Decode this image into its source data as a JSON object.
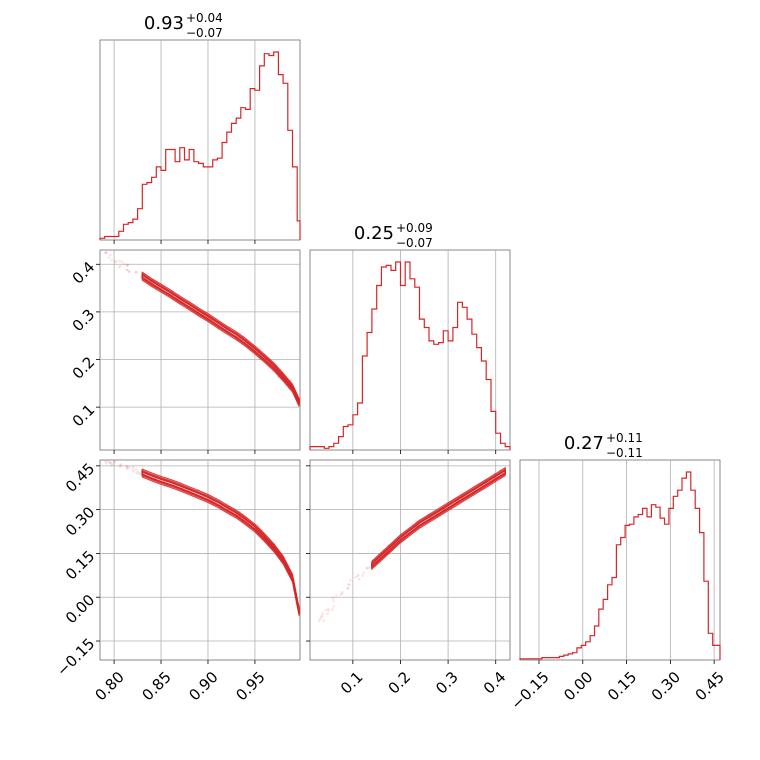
{
  "chart_data": {
    "type": "corner",
    "color": "#d62728",
    "parameters": [
      {
        "id": "p0",
        "range": [
          0.785,
          0.998
        ],
        "ticks": [
          0.8,
          0.85,
          0.9,
          0.95
        ],
        "tick_labels": [
          "0.80",
          "0.85",
          "0.90",
          "0.95"
        ],
        "title": {
          "value": "0.93",
          "plus": "+0.04",
          "minus": "−0.07"
        }
      },
      {
        "id": "p1",
        "range": [
          0.01,
          0.43
        ],
        "ticks": [
          0.1,
          0.2,
          0.3,
          0.4
        ],
        "tick_labels": [
          "0.1",
          "0.2",
          "0.3",
          "0.4"
        ],
        "title": {
          "value": "0.25",
          "plus": "+0.09",
          "minus": "−0.07"
        }
      },
      {
        "id": "p2",
        "range": [
          -0.215,
          0.47
        ],
        "ticks": [
          -0.15,
          0.0,
          0.15,
          0.3,
          0.45
        ],
        "tick_labels": [
          "−0.15",
          "0.00",
          "0.15",
          "0.30",
          "0.45"
        ],
        "title": {
          "value": "0.27",
          "plus": "+0.11",
          "minus": "−0.11"
        }
      }
    ],
    "histograms": [
      {
        "param": "p0",
        "bin_edges": [
          0.785,
          0.79,
          0.795,
          0.8,
          0.805,
          0.81,
          0.815,
          0.82,
          0.825,
          0.83,
          0.835,
          0.84,
          0.845,
          0.85,
          0.855,
          0.86,
          0.865,
          0.87,
          0.875,
          0.88,
          0.885,
          0.89,
          0.895,
          0.9,
          0.905,
          0.91,
          0.915,
          0.92,
          0.925,
          0.93,
          0.935,
          0.94,
          0.945,
          0.95,
          0.955,
          0.96,
          0.965,
          0.97,
          0.975,
          0.98,
          0.985,
          0.99,
          0.995,
          0.998
        ],
        "counts": [
          1,
          2,
          2,
          2,
          5,
          9,
          10,
          12,
          18,
          32,
          33,
          36,
          42,
          40,
          52,
          52,
          45,
          53,
          46,
          52,
          45,
          44,
          42,
          42,
          46,
          47,
          56,
          62,
          67,
          70,
          76,
          75,
          87,
          86,
          100,
          107,
          106,
          108,
          95,
          90,
          63,
          42,
          11
        ]
      },
      {
        "param": "p1",
        "bin_edges": [
          0.01,
          0.02,
          0.03,
          0.04,
          0.05,
          0.06,
          0.07,
          0.08,
          0.09,
          0.1,
          0.11,
          0.12,
          0.13,
          0.14,
          0.15,
          0.16,
          0.17,
          0.18,
          0.19,
          0.2,
          0.21,
          0.22,
          0.23,
          0.24,
          0.25,
          0.26,
          0.27,
          0.28,
          0.29,
          0.3,
          0.31,
          0.32,
          0.33,
          0.34,
          0.35,
          0.36,
          0.37,
          0.38,
          0.39,
          0.4,
          0.41,
          0.42,
          0.43
        ],
        "counts": [
          2,
          2,
          2,
          1,
          2,
          4,
          8,
          14,
          15,
          21,
          28,
          56,
          70,
          84,
          98,
          109,
          110,
          107,
          112,
          98,
          112,
          102,
          97,
          78,
          73,
          65,
          63,
          64,
          71,
          65,
          73,
          88,
          85,
          78,
          69,
          61,
          53,
          42,
          23,
          10,
          4,
          2
        ]
      },
      {
        "param": "p2",
        "bin_edges": [
          -0.215,
          -0.2,
          -0.185,
          -0.17,
          -0.155,
          -0.14,
          -0.125,
          -0.11,
          -0.095,
          -0.08,
          -0.065,
          -0.05,
          -0.035,
          -0.02,
          -0.005,
          0.01,
          0.025,
          0.04,
          0.055,
          0.07,
          0.085,
          0.1,
          0.115,
          0.13,
          0.145,
          0.16,
          0.175,
          0.19,
          0.205,
          0.22,
          0.235,
          0.25,
          0.265,
          0.28,
          0.295,
          0.31,
          0.325,
          0.34,
          0.355,
          0.37,
          0.385,
          0.4,
          0.415,
          0.43,
          0.445,
          0.47
        ],
        "counts": [
          1,
          1,
          1,
          1,
          1,
          2,
          2,
          2,
          2,
          3,
          4,
          5,
          6,
          10,
          12,
          15,
          20,
          28,
          42,
          50,
          62,
          68,
          95,
          101,
          111,
          112,
          118,
          120,
          125,
          118,
          128,
          126,
          117,
          112,
          125,
          135,
          140,
          150,
          155,
          140,
          125,
          105,
          65,
          22,
          12
        ]
      }
    ],
    "scatter_panels": [
      {
        "x": "p0",
        "y": "p1",
        "ridge_x": [
          0.79,
          0.8,
          0.81,
          0.82,
          0.83,
          0.84,
          0.85,
          0.86,
          0.87,
          0.88,
          0.89,
          0.9,
          0.91,
          0.92,
          0.93,
          0.94,
          0.95,
          0.96,
          0.97,
          0.98,
          0.99,
          0.997
        ],
        "ridge_y": [
          0.42,
          0.41,
          0.395,
          0.385,
          0.375,
          0.362,
          0.35,
          0.338,
          0.325,
          0.313,
          0.3,
          0.288,
          0.275,
          0.262,
          0.25,
          0.236,
          0.22,
          0.203,
          0.185,
          0.163,
          0.14,
          0.11
        ],
        "contour_start_x": 0.826
      },
      {
        "x": "p0",
        "y": "p2",
        "ridge_x": [
          0.79,
          0.8,
          0.81,
          0.82,
          0.83,
          0.84,
          0.85,
          0.86,
          0.87,
          0.88,
          0.89,
          0.9,
          0.91,
          0.92,
          0.93,
          0.94,
          0.95,
          0.96,
          0.97,
          0.98,
          0.99,
          0.997
        ],
        "ridge_y": [
          0.47,
          0.46,
          0.45,
          0.44,
          0.425,
          0.412,
          0.4,
          0.39,
          0.378,
          0.365,
          0.352,
          0.338,
          0.322,
          0.303,
          0.285,
          0.262,
          0.237,
          0.205,
          0.17,
          0.128,
          0.065,
          -0.05
        ],
        "contour_start_x": 0.826
      },
      {
        "x": "p1",
        "y": "p2",
        "ridge_x": [
          0.03,
          0.06,
          0.08,
          0.1,
          0.12,
          0.14,
          0.16,
          0.18,
          0.2,
          0.22,
          0.24,
          0.26,
          0.28,
          0.3,
          0.32,
          0.34,
          0.36,
          0.38,
          0.4,
          0.42
        ],
        "ridge_y": [
          -0.08,
          -0.02,
          0.02,
          0.05,
          0.08,
          0.11,
          0.14,
          0.17,
          0.2,
          0.225,
          0.25,
          0.27,
          0.29,
          0.31,
          0.33,
          0.35,
          0.37,
          0.39,
          0.41,
          0.43
        ],
        "contour_start_x": 0.13
      }
    ]
  }
}
